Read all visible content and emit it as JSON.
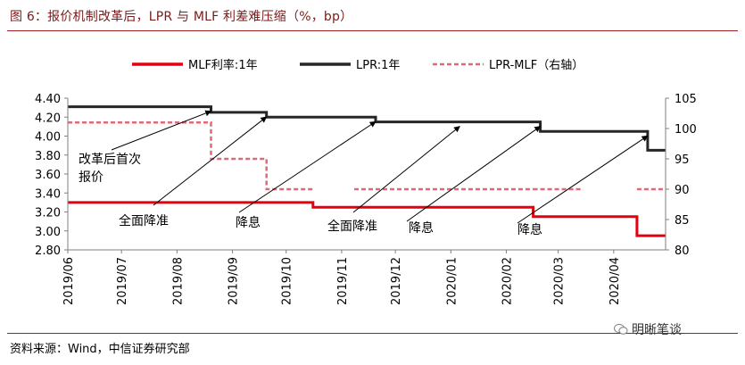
{
  "figure": {
    "title": "图 6：报价机制改革后，LPR 与 MLF 利差难压缩（%，bp）",
    "source": "资料来源：Wind，中信证券研究部",
    "watermark": "明晰笔谈"
  },
  "chart_data": {
    "type": "line",
    "x_ticks": [
      "2019/06",
      "2019/07",
      "2019/08",
      "2019/09",
      "2019/10",
      "2019/11",
      "2019/12",
      "2020/01",
      "2020/02",
      "2020/03",
      "2020/04"
    ],
    "x_range": [
      "2019-06-01",
      "2020-04-30"
    ],
    "y_left": {
      "range": [
        2.8,
        4.4
      ],
      "ticks": [
        "4.40",
        "4.20",
        "4.00",
        "3.80",
        "3.60",
        "3.40",
        "3.20",
        "3.00",
        "2.80"
      ]
    },
    "y_right": {
      "range": [
        80,
        105
      ],
      "ticks": [
        "105",
        "100",
        "95",
        "90",
        "85",
        "80"
      ]
    },
    "grid": false,
    "legend_position": "top",
    "series": [
      {
        "name": "MLF利率:1年",
        "axis": "left",
        "color": "#e3000f",
        "style": "solid",
        "points": [
          [
            "2019-06-01",
            3.3
          ],
          [
            "2019-10-16",
            3.3
          ],
          [
            "2019-10-16",
            3.25
          ],
          [
            "2020-02-16",
            3.25
          ],
          [
            "2020-02-16",
            3.15
          ],
          [
            "2020-04-14",
            3.15
          ],
          [
            "2020-04-14",
            2.95
          ],
          [
            "2020-04-30",
            2.95
          ]
        ]
      },
      {
        "name": "LPR:1年",
        "axis": "left",
        "color": "#262626",
        "style": "solid",
        "points": [
          [
            "2019-06-01",
            4.31
          ],
          [
            "2019-08-20",
            4.31
          ],
          [
            "2019-08-20",
            4.25
          ],
          [
            "2019-09-20",
            4.25
          ],
          [
            "2019-09-20",
            4.2
          ],
          [
            "2019-11-20",
            4.2
          ],
          [
            "2019-11-20",
            4.15
          ],
          [
            "2020-02-20",
            4.15
          ],
          [
            "2020-02-20",
            4.05
          ],
          [
            "2020-04-20",
            4.05
          ],
          [
            "2020-04-20",
            3.85
          ],
          [
            "2020-04-30",
            3.85
          ]
        ]
      },
      {
        "name": "LPR-MLF（右轴）",
        "axis": "right",
        "color": "#e0697a",
        "style": "dashed",
        "segments": [
          [
            [
              "2019-06-01",
              101
            ],
            [
              "2019-08-20",
              101
            ],
            [
              "2019-08-20",
              95
            ],
            [
              "2019-09-20",
              95
            ],
            [
              "2019-09-20",
              90
            ],
            [
              "2019-10-16",
              90
            ]
          ],
          [
            [
              "2019-11-08",
              90
            ],
            [
              "2020-02-16",
              90
            ]
          ],
          [
            [
              "2020-02-16",
              90
            ],
            [
              "2020-03-15",
              90
            ]
          ],
          [
            [
              "2020-04-14",
              90
            ],
            [
              "2020-04-30",
              90
            ]
          ]
        ]
      }
    ],
    "annotations": [
      {
        "text": [
          "改革后首次",
          "报价"
        ],
        "date": "2019-08-20",
        "value": 4.31
      },
      {
        "text": [
          "全面降准"
        ],
        "date": "2019-09-20",
        "value": 4.25
      },
      {
        "text": [
          "降息"
        ],
        "date": "2019-11-20",
        "value": 4.2
      },
      {
        "text": [
          "全面降准"
        ],
        "date": "2020-01-06",
        "value": 4.15
      },
      {
        "text": [
          "降息"
        ],
        "date": "2020-02-20",
        "value": 4.15
      },
      {
        "text": [
          "降息"
        ],
        "date": "2020-04-20",
        "value": 4.05
      }
    ]
  }
}
